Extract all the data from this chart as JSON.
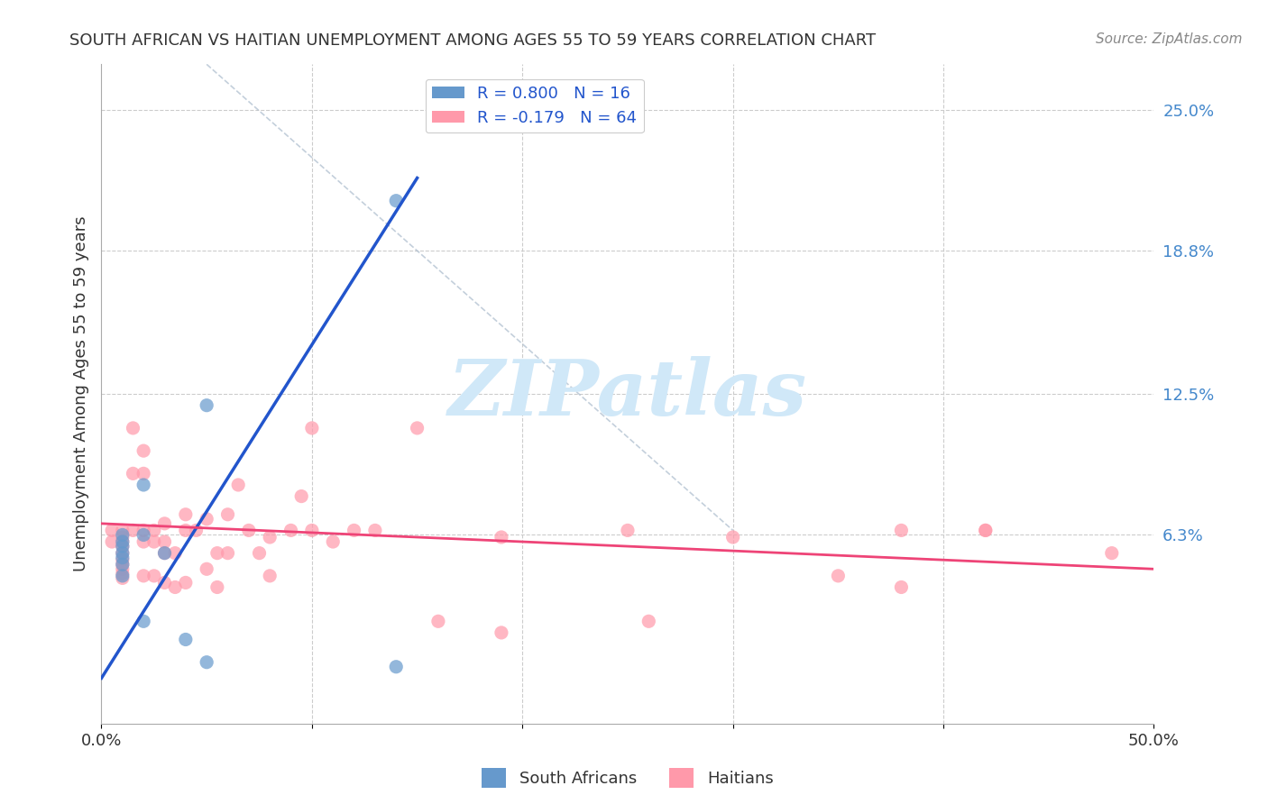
{
  "title": "SOUTH AFRICAN VS HAITIAN UNEMPLOYMENT AMONG AGES 55 TO 59 YEARS CORRELATION CHART",
  "source": "Source: ZipAtlas.com",
  "ylabel": "Unemployment Among Ages 55 to 59 years",
  "xlabel_ticks": [
    "0.0%",
    "50.0%"
  ],
  "right_ytick_labels": [
    "25.0%",
    "18.8%",
    "12.5%",
    "6.3%"
  ],
  "right_ytick_values": [
    0.25,
    0.188,
    0.125,
    0.063
  ],
  "xlim": [
    0.0,
    0.5
  ],
  "ylim": [
    -0.02,
    0.27
  ],
  "legend_r1": "R = 0.800   N = 16",
  "legend_r2": "R = -0.179   N = 64",
  "sa_color": "#6699cc",
  "haiti_color": "#ff99aa",
  "sa_trend_color": "#2255cc",
  "haiti_trend_color": "#ee4477",
  "watermark_text": "ZIPatlas",
  "watermark_color": "#d0e8f8",
  "south_africans_x": [
    0.01,
    0.01,
    0.01,
    0.01,
    0.01,
    0.01,
    0.01,
    0.02,
    0.02,
    0.02,
    0.03,
    0.04,
    0.05,
    0.05,
    0.14,
    0.14
  ],
  "south_africans_y": [
    0.063,
    0.06,
    0.058,
    0.055,
    0.053,
    0.05,
    0.045,
    0.085,
    0.063,
    0.025,
    0.055,
    0.017,
    0.12,
    0.007,
    0.21,
    0.005
  ],
  "haitians_x": [
    0.005,
    0.005,
    0.01,
    0.01,
    0.01,
    0.01,
    0.01,
    0.01,
    0.01,
    0.01,
    0.01,
    0.01,
    0.015,
    0.015,
    0.015,
    0.02,
    0.02,
    0.02,
    0.02,
    0.02,
    0.025,
    0.025,
    0.025,
    0.03,
    0.03,
    0.03,
    0.03,
    0.035,
    0.035,
    0.04,
    0.04,
    0.04,
    0.045,
    0.05,
    0.05,
    0.055,
    0.055,
    0.06,
    0.06,
    0.065,
    0.07,
    0.075,
    0.08,
    0.08,
    0.09,
    0.095,
    0.1,
    0.1,
    0.11,
    0.12,
    0.13,
    0.15,
    0.16,
    0.19,
    0.19,
    0.25,
    0.26,
    0.3,
    0.35,
    0.38,
    0.38,
    0.42,
    0.42,
    0.48
  ],
  "haitians_y": [
    0.065,
    0.06,
    0.065,
    0.062,
    0.06,
    0.058,
    0.055,
    0.052,
    0.05,
    0.048,
    0.046,
    0.044,
    0.11,
    0.09,
    0.065,
    0.1,
    0.09,
    0.065,
    0.06,
    0.045,
    0.065,
    0.06,
    0.045,
    0.068,
    0.06,
    0.055,
    0.042,
    0.055,
    0.04,
    0.072,
    0.065,
    0.042,
    0.065,
    0.07,
    0.048,
    0.055,
    0.04,
    0.072,
    0.055,
    0.085,
    0.065,
    0.055,
    0.062,
    0.045,
    0.065,
    0.08,
    0.11,
    0.065,
    0.06,
    0.065,
    0.065,
    0.11,
    0.025,
    0.062,
    0.02,
    0.065,
    0.025,
    0.062,
    0.045,
    0.065,
    0.04,
    0.065,
    0.065,
    0.055
  ],
  "sa_trend_x": [
    0.0,
    0.15
  ],
  "sa_trend_y_start": 0.0,
  "sa_trend_y_end": 0.22,
  "haiti_trend_x": [
    0.0,
    0.5
  ],
  "haiti_trend_y_start": 0.068,
  "haiti_trend_y_end": 0.048,
  "dashed_line_x": [
    0.05,
    0.3
  ],
  "dashed_line_y": [
    0.27,
    0.065
  ],
  "grid_color": "#cccccc",
  "bg_color": "#ffffff"
}
